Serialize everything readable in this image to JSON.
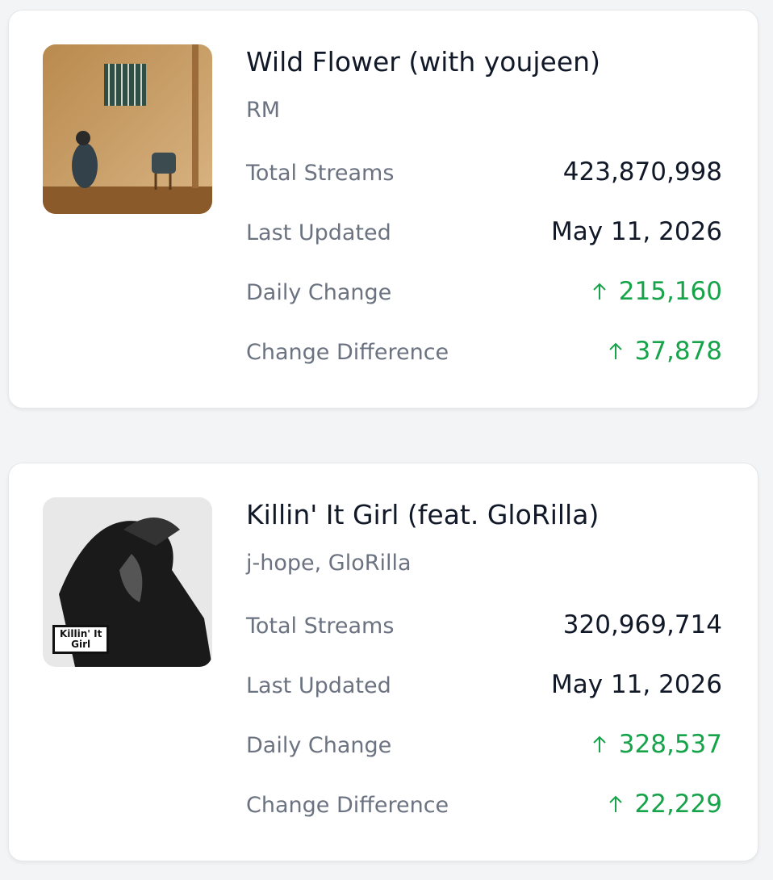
{
  "cards": [
    {
      "title": "Wild Flower (with youjeen)",
      "artist": "RM",
      "stats": [
        {
          "label": "Total Streams",
          "value": "423,870,998"
        },
        {
          "label": "Last Updated",
          "value": "May 11, 2026"
        },
        {
          "label": "Daily Change",
          "value": "215,160",
          "trend": "up"
        },
        {
          "label": "Change Difference",
          "value": "37,878",
          "trend": "up"
        }
      ]
    },
    {
      "title": "Killin' It Girl (feat. GloRilla)",
      "artist": "j-hope, GloRilla",
      "cover_text": [
        "Killin' It",
        "Girl"
      ],
      "stats": [
        {
          "label": "Total Streams",
          "value": "320,969,714"
        },
        {
          "label": "Last Updated",
          "value": "May 11, 2026"
        },
        {
          "label": "Daily Change",
          "value": "328,537",
          "trend": "up"
        },
        {
          "label": "Change Difference",
          "value": "22,229",
          "trend": "up"
        }
      ]
    }
  ]
}
